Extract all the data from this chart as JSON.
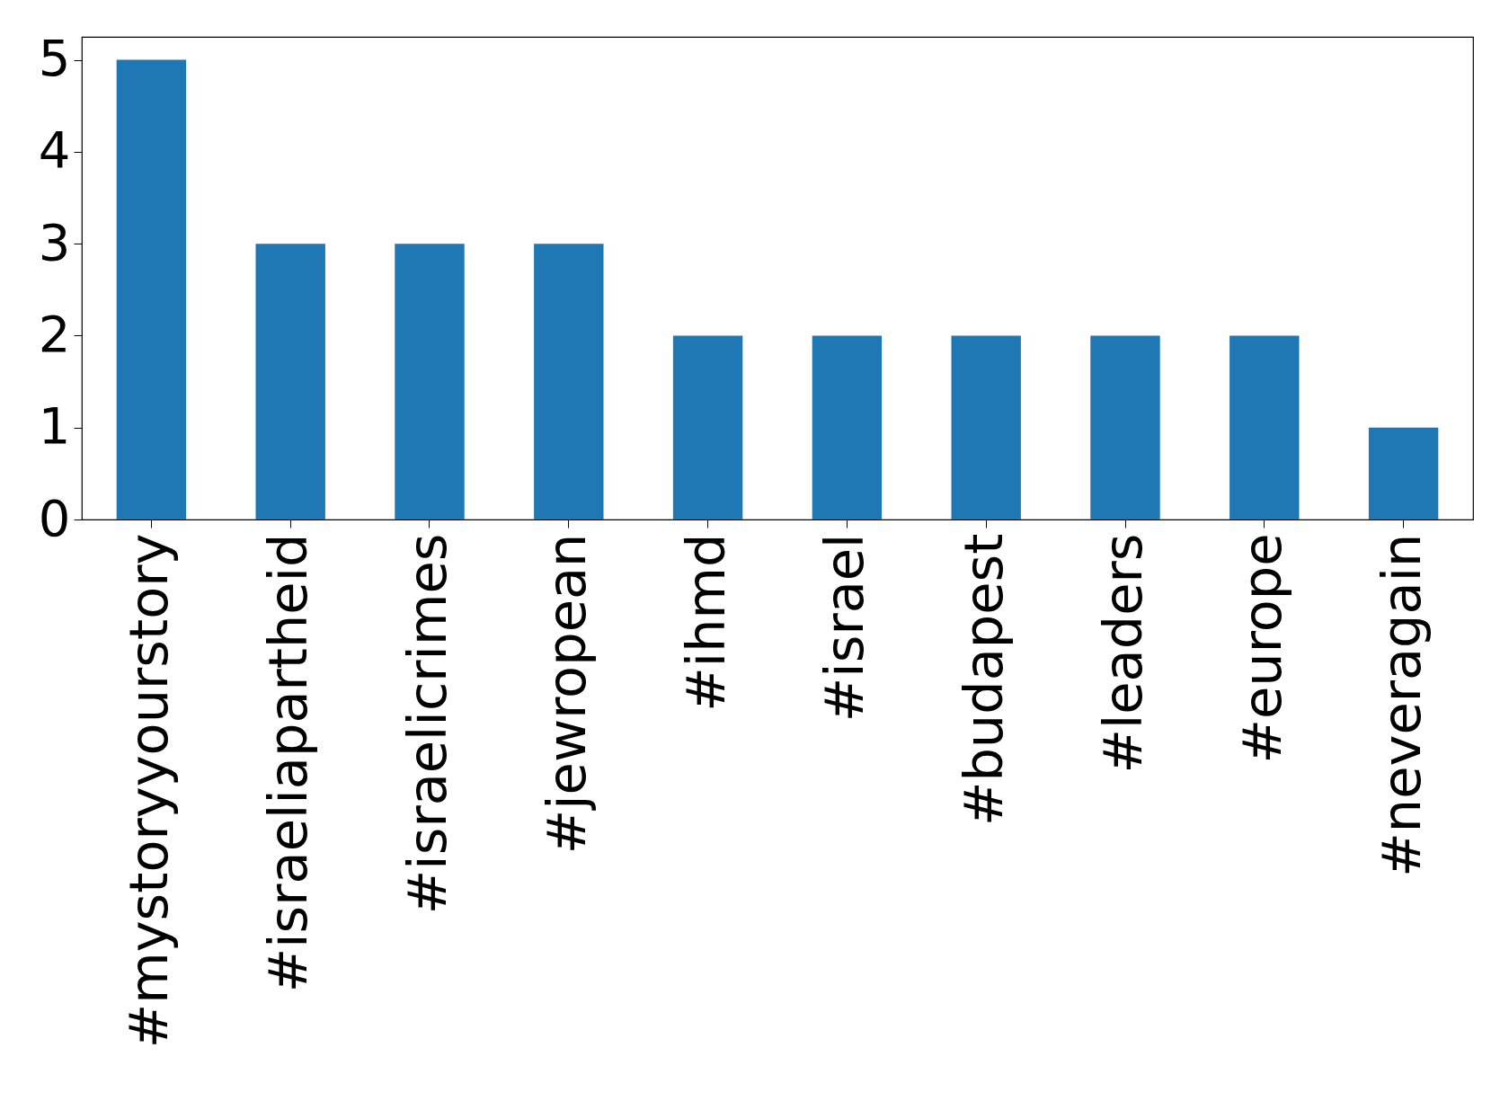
{
  "chart_data": {
    "type": "bar",
    "categories": [
      "#mystoryyourstory",
      "#israeliapartheid",
      "#israelicrimes",
      "#jewropean",
      "#ihmd",
      "#israel",
      "#budapest",
      "#leaders",
      "#europe",
      "#neveragain"
    ],
    "values": [
      5,
      3,
      3,
      3,
      2,
      2,
      2,
      2,
      2,
      1
    ],
    "color": "#1f77b4",
    "ylim": [
      0,
      5.25
    ],
    "yticks": [
      0,
      1,
      2,
      3,
      4,
      5
    ],
    "grid": false
  }
}
